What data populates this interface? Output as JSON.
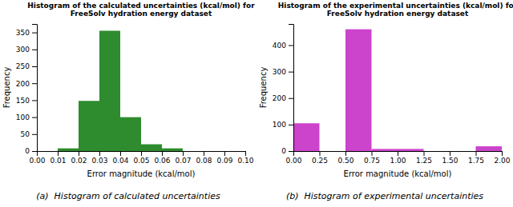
{
  "chart_data": [
    {
      "type": "histogram",
      "title": "Histogram of the calculated uncertainties (kcal/mol) for FreeSolv hydration energy dataset",
      "xlabel": "Error magnitude (kcal/mol)",
      "ylabel": "Frequency",
      "annotations": [
        "(a)  Histogram of calculated uncertainties"
      ],
      "color": "#2e8b2e",
      "bins": [
        0.01,
        0.02,
        0.03,
        0.04,
        0.05,
        0.06,
        0.07
      ],
      "values": [
        8,
        148,
        355,
        100,
        20,
        8
      ],
      "xlim": [
        0.0,
        0.1
      ],
      "xticks": [
        {
          "value": 0.0,
          "label": "0.00"
        },
        0.01,
        0.02,
        0.03,
        0.04,
        0.05,
        0.06,
        0.07,
        0.08,
        0.09,
        {
          "value": 0.1,
          "label": "0.10"
        }
      ],
      "ylim": [
        0,
        375
      ],
      "yticks": [
        0,
        50,
        100,
        150,
        200,
        250,
        300,
        350
      ]
    },
    {
      "type": "histogram",
      "title": "Histogram of the experimental uncertainties (kcal/mol) for FreeSolv hydration energy dataset",
      "xlabel": "Error magnitude (kcal/mol)",
      "ylabel": "Frequency",
      "annotations": [
        "(b)  Histogram of experimental uncertainties"
      ],
      "color": "#cc44cc",
      "bins": [
        0.0,
        0.25,
        0.5,
        0.75,
        1.0,
        1.25,
        1.5,
        1.75,
        2.0
      ],
      "values": [
        105,
        0,
        460,
        8,
        8,
        0,
        0,
        18
      ],
      "xlim": [
        0.0,
        2.0
      ],
      "xticks": [
        {
          "value": 0.0,
          "label": "0.00"
        },
        0.25,
        {
          "value": 0.5,
          "label": "0.50"
        },
        0.75,
        {
          "value": 1.0,
          "label": "1.00"
        },
        1.25,
        {
          "value": 1.5,
          "label": "1.50"
        },
        1.75,
        {
          "value": 2.0,
          "label": "2.00"
        }
      ],
      "ylim": [
        0,
        480
      ],
      "yticks": [
        0,
        100,
        200,
        300,
        400
      ]
    }
  ]
}
